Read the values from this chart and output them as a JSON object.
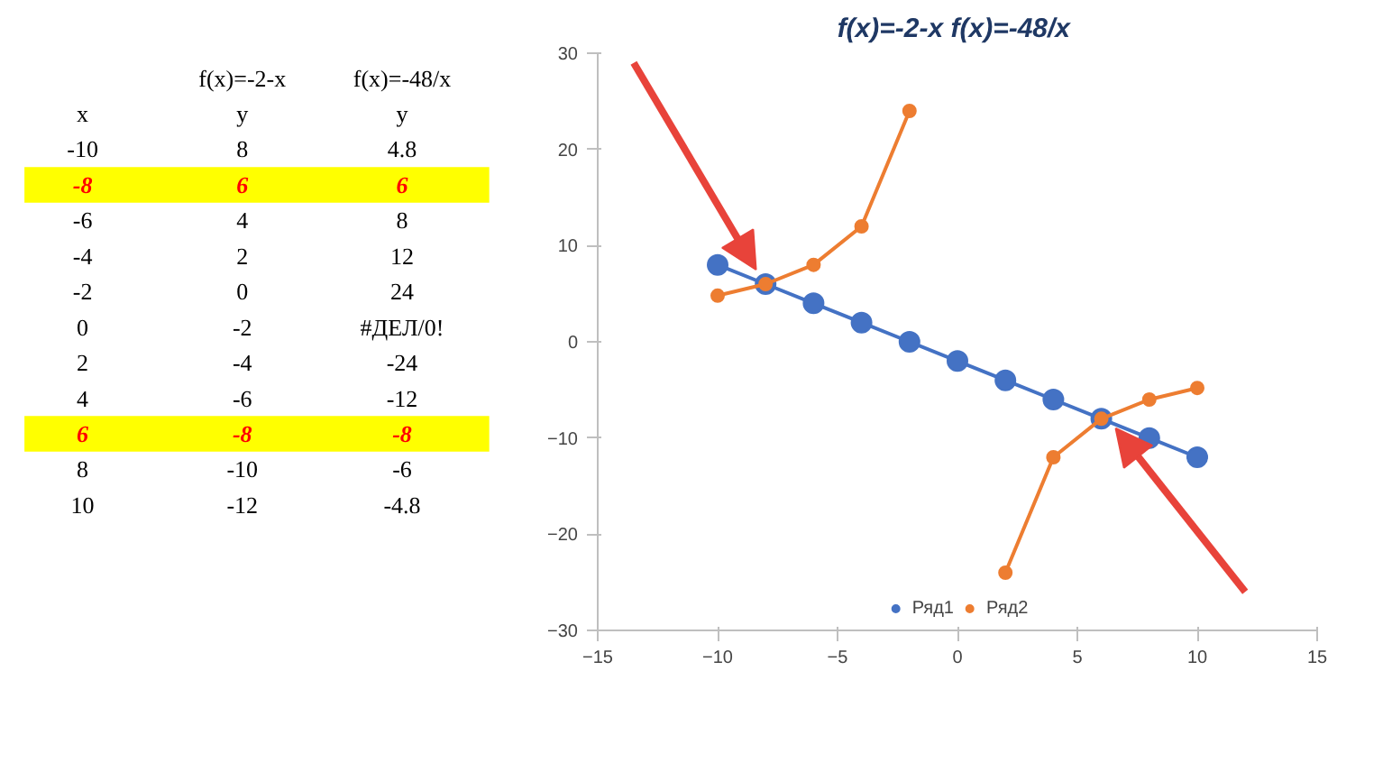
{
  "chart_data": {
    "type": "line",
    "title": "f(x)=-2-x  f(x)=-48/x",
    "annotations": [
      "f(x)=-2-x",
      "f(x)=-48/x",
      "x",
      "y",
      "y",
      "-10",
      "8",
      "4.8",
      "-8",
      "6",
      "6",
      "-6",
      "4",
      "8",
      "-4",
      "2",
      "12",
      "-2",
      "0",
      "24",
      "0",
      "-2",
      "#ДЕЛ/0!",
      "2",
      "-4",
      "-24",
      "4",
      "-6",
      "-12",
      "6",
      "-8",
      "-8",
      "8",
      "-10",
      "-6",
      "10",
      "-12",
      "-4.8"
    ],
    "x": [
      -10,
      -8,
      -6,
      -4,
      -2,
      0,
      2,
      4,
      6,
      8,
      10
    ],
    "series": [
      {
        "name": "Ряд1",
        "color": "#4472c4",
        "values": [
          8,
          6,
          4,
          2,
          0,
          -2,
          -4,
          -6,
          -8,
          -10,
          -12
        ]
      },
      {
        "name": "Ряд2",
        "color": "#ed7d31",
        "values": [
          4.8,
          6,
          8,
          12,
          24,
          null,
          -24,
          -12,
          -8,
          -6,
          -4.8
        ]
      }
    ],
    "xlim": [
      -15,
      15
    ],
    "xticks": [
      -15,
      -10,
      -5,
      0,
      5,
      10,
      15
    ],
    "ylim": [
      -30,
      30
    ],
    "yticks": [
      -30,
      -20,
      -10,
      0,
      10,
      20,
      30
    ],
    "marker": "circle",
    "legend": "bottom"
  }
}
